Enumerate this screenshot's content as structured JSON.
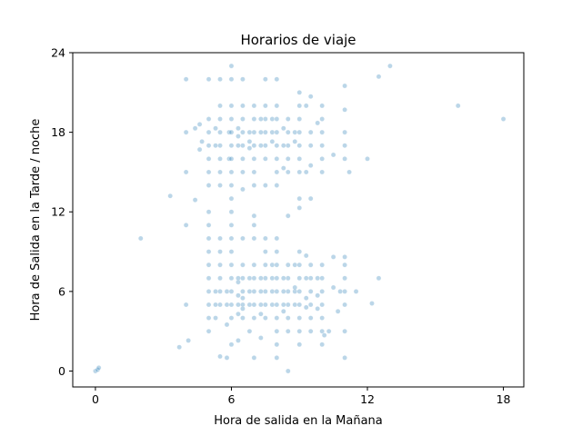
{
  "chart_data": {
    "type": "scatter",
    "title": "Horarios de viaje",
    "xlabel": "Hora de salida en la Mañana",
    "ylabel": "Hora de Salida en la Tarde / noche",
    "xlim": [
      -1.0,
      18.9
    ],
    "ylim": [
      -1.2,
      24.0
    ],
    "xticks": [
      0,
      6,
      12,
      18
    ],
    "yticks": [
      0,
      6,
      12,
      18,
      24
    ],
    "grid": false,
    "marker_color": "#1f77b4",
    "marker_opacity": 0.3,
    "series": [
      {
        "points": [
          [
            0.0,
            0.0
          ],
          [
            0.1,
            0.1
          ],
          [
            0.15,
            0.25
          ],
          [
            2.0,
            10.0
          ],
          [
            3.3,
            13.2
          ],
          [
            3.7,
            1.8
          ],
          [
            4.0,
            5.0
          ],
          [
            4.0,
            11.0
          ],
          [
            4.0,
            15.0
          ],
          [
            4.0,
            18.0
          ],
          [
            4.0,
            22.0
          ],
          [
            4.1,
            2.3
          ],
          [
            4.4,
            12.9
          ],
          [
            4.4,
            18.3
          ],
          [
            4.6,
            16.7
          ],
          [
            4.6,
            18.6
          ],
          [
            4.7,
            17.3
          ],
          [
            5.0,
            4.0
          ],
          [
            5.0,
            5.0
          ],
          [
            5.0,
            6.0
          ],
          [
            5.0,
            7.0
          ],
          [
            5.0,
            8.0
          ],
          [
            5.0,
            9.0
          ],
          [
            5.0,
            10.0
          ],
          [
            5.0,
            11.0
          ],
          [
            5.0,
            14.0
          ],
          [
            5.0,
            15.0
          ],
          [
            5.0,
            16.0
          ],
          [
            5.0,
            17.0
          ],
          [
            5.0,
            18.0
          ],
          [
            5.0,
            19.0
          ],
          [
            5.0,
            22.0
          ],
          [
            5.0,
            3.0
          ],
          [
            5.0,
            12.0
          ],
          [
            5.3,
            4.0
          ],
          [
            5.3,
            5.0
          ],
          [
            5.3,
            6.0
          ],
          [
            5.3,
            17.0
          ],
          [
            5.3,
            18.3
          ],
          [
            5.5,
            1.1
          ],
          [
            5.5,
            5.0
          ],
          [
            5.5,
            6.0
          ],
          [
            5.5,
            7.0
          ],
          [
            5.5,
            8.0
          ],
          [
            5.5,
            9.0
          ],
          [
            5.5,
            10.0
          ],
          [
            5.5,
            14.0
          ],
          [
            5.5,
            15.0
          ],
          [
            5.5,
            16.0
          ],
          [
            5.5,
            17.0
          ],
          [
            5.5,
            18.0
          ],
          [
            5.5,
            19.0
          ],
          [
            5.5,
            20.0
          ],
          [
            5.5,
            22.0
          ],
          [
            5.8,
            1.0
          ],
          [
            5.8,
            5.0
          ],
          [
            5.8,
            6.0
          ],
          [
            5.8,
            3.5
          ],
          [
            5.9,
            16.0
          ],
          [
            5.9,
            18.0
          ],
          [
            6.0,
            2.0
          ],
          [
            6.0,
            4.0
          ],
          [
            6.0,
            5.0
          ],
          [
            6.0,
            6.0
          ],
          [
            6.0,
            7.0
          ],
          [
            6.0,
            8.0
          ],
          [
            6.0,
            9.0
          ],
          [
            6.0,
            10.0
          ],
          [
            6.0,
            11.0
          ],
          [
            6.0,
            12.0
          ],
          [
            6.0,
            13.0
          ],
          [
            6.0,
            14.0
          ],
          [
            6.0,
            15.0
          ],
          [
            6.0,
            16.0
          ],
          [
            6.0,
            17.0
          ],
          [
            6.0,
            18.0
          ],
          [
            6.0,
            19.0
          ],
          [
            6.0,
            20.0
          ],
          [
            6.0,
            22.0
          ],
          [
            6.0,
            23.0
          ],
          [
            6.3,
            2.3
          ],
          [
            6.3,
            4.3
          ],
          [
            6.3,
            5.0
          ],
          [
            6.3,
            5.7
          ],
          [
            6.3,
            6.7
          ],
          [
            6.3,
            7.0
          ],
          [
            6.3,
            17.0
          ],
          [
            6.3,
            17.7
          ],
          [
            6.3,
            18.3
          ],
          [
            6.5,
            4.0
          ],
          [
            6.5,
            5.0
          ],
          [
            6.5,
            6.0
          ],
          [
            6.5,
            7.0
          ],
          [
            6.5,
            8.0
          ],
          [
            6.5,
            10.0
          ],
          [
            6.5,
            13.7
          ],
          [
            6.5,
            15.0
          ],
          [
            6.5,
            16.0
          ],
          [
            6.5,
            17.0
          ],
          [
            6.5,
            18.0
          ],
          [
            6.5,
            19.0
          ],
          [
            6.5,
            20.0
          ],
          [
            6.5,
            22.0
          ],
          [
            6.5,
            4.7
          ],
          [
            6.5,
            5.5
          ],
          [
            6.8,
            3.0
          ],
          [
            6.8,
            5.0
          ],
          [
            6.8,
            6.0
          ],
          [
            6.8,
            7.0
          ],
          [
            6.8,
            16.8
          ],
          [
            6.8,
            17.3
          ],
          [
            6.8,
            18.0
          ],
          [
            7.0,
            1.0
          ],
          [
            7.0,
            4.0
          ],
          [
            7.0,
            5.0
          ],
          [
            7.0,
            6.0
          ],
          [
            7.0,
            7.0
          ],
          [
            7.0,
            8.0
          ],
          [
            7.0,
            10.0
          ],
          [
            7.0,
            11.0
          ],
          [
            7.0,
            11.7
          ],
          [
            7.0,
            14.0
          ],
          [
            7.0,
            15.0
          ],
          [
            7.0,
            16.0
          ],
          [
            7.0,
            17.0
          ],
          [
            7.0,
            18.0
          ],
          [
            7.0,
            19.0
          ],
          [
            7.0,
            20.0
          ],
          [
            7.3,
            2.5
          ],
          [
            7.3,
            4.3
          ],
          [
            7.3,
            5.0
          ],
          [
            7.3,
            6.0
          ],
          [
            7.3,
            7.0
          ],
          [
            7.3,
            17.0
          ],
          [
            7.3,
            18.0
          ],
          [
            7.3,
            19.0
          ],
          [
            7.5,
            4.0
          ],
          [
            7.5,
            5.0
          ],
          [
            7.5,
            6.0
          ],
          [
            7.5,
            7.0
          ],
          [
            7.5,
            8.0
          ],
          [
            7.5,
            9.0
          ],
          [
            7.5,
            10.0
          ],
          [
            7.5,
            14.0
          ],
          [
            7.5,
            16.0
          ],
          [
            7.5,
            17.0
          ],
          [
            7.5,
            18.0
          ],
          [
            7.5,
            19.0
          ],
          [
            7.5,
            20.0
          ],
          [
            7.5,
            22.0
          ],
          [
            7.8,
            5.0
          ],
          [
            7.8,
            6.0
          ],
          [
            7.8,
            7.0
          ],
          [
            7.8,
            8.0
          ],
          [
            7.8,
            17.3
          ],
          [
            7.8,
            18.0
          ],
          [
            7.8,
            19.0
          ],
          [
            8.0,
            1.0
          ],
          [
            8.0,
            2.0
          ],
          [
            8.0,
            3.0
          ],
          [
            8.0,
            4.0
          ],
          [
            8.0,
            5.0
          ],
          [
            8.0,
            6.0
          ],
          [
            8.0,
            7.0
          ],
          [
            8.0,
            8.0
          ],
          [
            8.0,
            9.0
          ],
          [
            8.0,
            10.0
          ],
          [
            8.0,
            14.0
          ],
          [
            8.0,
            15.0
          ],
          [
            8.0,
            16.0
          ],
          [
            8.0,
            17.0
          ],
          [
            8.0,
            18.0
          ],
          [
            8.0,
            19.0
          ],
          [
            8.0,
            20.0
          ],
          [
            8.0,
            22.0
          ],
          [
            8.3,
            4.5
          ],
          [
            8.3,
            5.0
          ],
          [
            8.3,
            6.0
          ],
          [
            8.3,
            7.0
          ],
          [
            8.3,
            15.3
          ],
          [
            8.3,
            17.0
          ],
          [
            8.3,
            18.3
          ],
          [
            8.5,
            0.0
          ],
          [
            8.5,
            3.0
          ],
          [
            8.5,
            4.0
          ],
          [
            8.5,
            5.0
          ],
          [
            8.5,
            6.0
          ],
          [
            8.5,
            7.0
          ],
          [
            8.5,
            8.0
          ],
          [
            8.5,
            11.7
          ],
          [
            8.5,
            15.0
          ],
          [
            8.5,
            16.0
          ],
          [
            8.5,
            17.0
          ],
          [
            8.5,
            18.0
          ],
          [
            8.5,
            19.0
          ],
          [
            8.8,
            5.0
          ],
          [
            8.8,
            6.0
          ],
          [
            8.8,
            6.3
          ],
          [
            8.8,
            8.0
          ],
          [
            8.8,
            17.3
          ],
          [
            8.8,
            18.0
          ],
          [
            9.0,
            2.0
          ],
          [
            9.0,
            3.0
          ],
          [
            9.0,
            4.0
          ],
          [
            9.0,
            5.0
          ],
          [
            9.0,
            6.0
          ],
          [
            9.0,
            7.0
          ],
          [
            9.0,
            8.0
          ],
          [
            9.0,
            9.0
          ],
          [
            9.0,
            12.3
          ],
          [
            9.0,
            13.0
          ],
          [
            9.0,
            15.0
          ],
          [
            9.0,
            16.0
          ],
          [
            9.0,
            17.0
          ],
          [
            9.0,
            18.0
          ],
          [
            9.0,
            19.0
          ],
          [
            9.0,
            20.0
          ],
          [
            9.0,
            21.0
          ],
          [
            9.3,
            4.8
          ],
          [
            9.3,
            5.5
          ],
          [
            9.3,
            7.0
          ],
          [
            9.3,
            8.7
          ],
          [
            9.3,
            15.0
          ],
          [
            9.3,
            20.0
          ],
          [
            9.5,
            3.0
          ],
          [
            9.5,
            4.0
          ],
          [
            9.5,
            5.0
          ],
          [
            9.5,
            6.0
          ],
          [
            9.5,
            7.0
          ],
          [
            9.5,
            8.0
          ],
          [
            9.5,
            13.0
          ],
          [
            9.5,
            15.5
          ],
          [
            9.5,
            17.0
          ],
          [
            9.5,
            18.0
          ],
          [
            9.5,
            20.7
          ],
          [
            9.8,
            4.7
          ],
          [
            9.8,
            5.7
          ],
          [
            9.8,
            7.0
          ],
          [
            9.8,
            18.7
          ],
          [
            10.0,
            2.0
          ],
          [
            10.0,
            3.0
          ],
          [
            10.0,
            4.0
          ],
          [
            10.0,
            5.0
          ],
          [
            10.0,
            6.0
          ],
          [
            10.0,
            7.0
          ],
          [
            10.0,
            8.0
          ],
          [
            10.0,
            15.0
          ],
          [
            10.0,
            16.0
          ],
          [
            10.0,
            17.0
          ],
          [
            10.0,
            18.0
          ],
          [
            10.0,
            19.0
          ],
          [
            10.0,
            20.0
          ],
          [
            10.1,
            2.7
          ],
          [
            10.3,
            3.0
          ],
          [
            10.5,
            6.3
          ],
          [
            10.5,
            8.6
          ],
          [
            10.5,
            16.3
          ],
          [
            10.7,
            4.5
          ],
          [
            10.8,
            6.0
          ],
          [
            11.0,
            1.0
          ],
          [
            11.0,
            3.0
          ],
          [
            11.0,
            5.0
          ],
          [
            11.0,
            6.0
          ],
          [
            11.0,
            7.0
          ],
          [
            11.0,
            8.0
          ],
          [
            11.0,
            8.6
          ],
          [
            11.0,
            16.0
          ],
          [
            11.0,
            17.0
          ],
          [
            11.0,
            18.0
          ],
          [
            11.0,
            19.7
          ],
          [
            11.0,
            21.5
          ],
          [
            11.2,
            15.0
          ],
          [
            11.5,
            6.0
          ],
          [
            12.0,
            16.0
          ],
          [
            12.2,
            5.1
          ],
          [
            12.5,
            7.0
          ],
          [
            12.5,
            22.2
          ],
          [
            13.0,
            23.0
          ],
          [
            16.0,
            20.0
          ],
          [
            18.0,
            19.0
          ]
        ]
      }
    ]
  }
}
